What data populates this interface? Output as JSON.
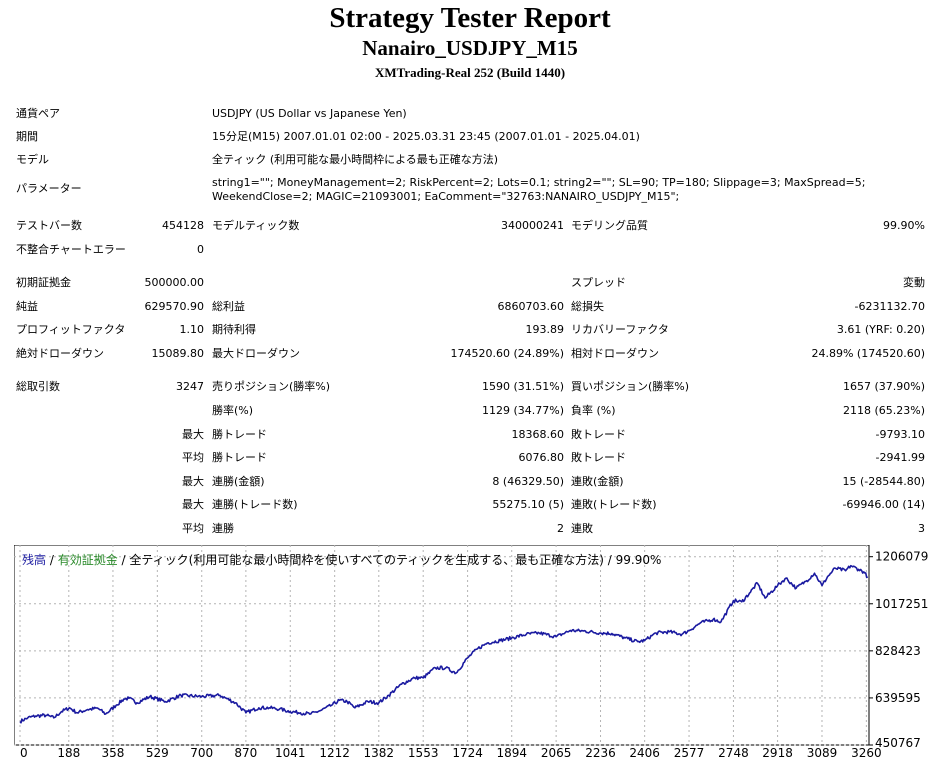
{
  "header": {
    "title": "Strategy Tester Report",
    "subtitle": "Nanairo_USDJPY_M15",
    "server": "XMTrading-Real 252 (Build 1440)"
  },
  "info": {
    "pair_label": "通貨ペア",
    "pair_value": "USDJPY (US Dollar vs Japanese Yen)",
    "period_label": "期間",
    "period_value": "15分足(M15) 2007.01.01 02:00 - 2025.03.31 23:45 (2007.01.01 - 2025.04.01)",
    "model_label": "モデル",
    "model_value": "全ティック (利用可能な最小時間枠による最も正確な方法)",
    "params_label": "パラメーター",
    "params_line1": "string1=\"\"; MoneyManagement=2; RiskPercent=2; Lots=0.1; string2=\"\"; SL=90; TP=180; Slippage=3; MaxSpread=5;",
    "params_line2": "WeekendClose=2; MAGIC=21093001; EaComment=\"32763:NANAIRO_USDJPY_M15\";"
  },
  "stats": {
    "bars_label": "テストバー数",
    "bars_value": "454128",
    "ticks_label": "モデルティック数",
    "ticks_value": "340000241",
    "quality_label": "モデリング品質",
    "quality_value": "99.90%",
    "mismatch_label": "不整合チャートエラー",
    "mismatch_value": "0",
    "deposit_label": "初期証拠金",
    "deposit_value": "500000.00",
    "spread_label": "スプレッド",
    "spread_value": "変動",
    "netprofit_label": "純益",
    "netprofit_value": "629570.90",
    "grossprofit_label": "総利益",
    "grossprofit_value": "6860703.60",
    "grossloss_label": "総損失",
    "grossloss_value": "-6231132.70",
    "pf_label": "プロフィットファクタ",
    "pf_value": "1.10",
    "expected_label": "期待利得",
    "expected_value": "193.89",
    "recovery_label": "リカバリーファクタ",
    "recovery_value": "3.61 (YRF: 0.20)",
    "absdd_label": "絶対ドローダウン",
    "absdd_value": "15089.80",
    "maxdd_label": "最大ドローダウン",
    "maxdd_value": "174520.60 (24.89%)",
    "reldd_label": "相対ドローダウン",
    "reldd_value": "24.89% (174520.60)",
    "trades_label": "総取引数",
    "trades_value": "3247",
    "short_label": "売りポジション(勝率%)",
    "short_value": "1590 (31.51%)",
    "long_label": "買いポジション(勝率%)",
    "long_value": "1657 (37.90%)",
    "winrate_label": "勝率(%)",
    "winrate_value": "1129 (34.77%)",
    "lossrate_label": "負率 (%)",
    "lossrate_value": "2118 (65.23%)",
    "max1": "最大",
    "largest_win_label": "勝トレード",
    "largest_win_value": "18368.60",
    "largest_loss_label": "敗トレード",
    "largest_loss_value": "-9793.10",
    "avg1": "平均",
    "avg_win_label": "勝トレード",
    "avg_win_value": "6076.80",
    "avg_loss_label": "敗トレード",
    "avg_loss_value": "-2941.99",
    "max2": "最大",
    "cons_win_label": "連勝(金額)",
    "cons_win_value": "8 (46329.50)",
    "cons_loss_label": "連敗(金額)",
    "cons_loss_value": "15 (-28544.80)",
    "max3": "最大",
    "cons_profit_label": "連勝(トレード数)",
    "cons_profit_value": "55275.10 (5)",
    "cons_lossamt_label": "連敗(トレード数)",
    "cons_lossamt_value": "-69946.00 (14)",
    "avg2": "平均",
    "avg_cons_win_label": "連勝",
    "avg_cons_win_value": "2",
    "avg_cons_loss_label": "連敗",
    "avg_cons_loss_value": "3"
  },
  "chart_title": {
    "part1": "残高",
    "sep1": " / ",
    "part2": "有効証拠金",
    "part3": " / 全ティック(利用可能な最小時間枠を使いすべてのティックを生成する、最も正確な方法) / 99.90%"
  },
  "colors": {
    "balance": "#1a1aa0",
    "equity": "#2a8a2a",
    "grid": "#b4b4b4"
  },
  "chart_data": {
    "type": "line",
    "title": "",
    "xlabel": "",
    "ylabel": "",
    "xlim": [
      0,
      3247
    ],
    "ylim": [
      450767,
      1253000
    ],
    "x_ticks": [
      0,
      188,
      358,
      529,
      700,
      870,
      1041,
      1212,
      1382,
      1553,
      1724,
      1894,
      2065,
      2236,
      2406,
      2577,
      2748,
      2918,
      3089,
      3260
    ],
    "y_ticks": [
      450767,
      639595,
      828423,
      1017251,
      1206079
    ],
    "grid": true,
    "series": [
      {
        "name": "残高",
        "x": [
          0,
          30,
          60,
          100,
          130,
          160,
          190,
          220,
          260,
          300,
          330,
          370,
          400,
          420,
          450,
          500,
          560,
          620,
          700,
          770,
          830,
          870,
          920,
          960,
          1000,
          1041,
          1080,
          1120,
          1160,
          1200,
          1230,
          1260,
          1290,
          1340,
          1382,
          1420,
          1470,
          1520,
          1553,
          1600,
          1640,
          1680,
          1724,
          1760,
          1800,
          1850,
          1894,
          1950,
          2000,
          2065,
          2120,
          2170,
          2236,
          2280,
          2330,
          2380,
          2406,
          2450,
          2500,
          2550,
          2577,
          2620,
          2670,
          2700,
          2748,
          2780,
          2810,
          2840,
          2870,
          2918,
          2950,
          2990,
          3030,
          3060,
          3089,
          3110,
          3140,
          3180,
          3200,
          3230,
          3250,
          3265
        ],
        "values": [
          545000,
          560000,
          567000,
          570000,
          560000,
          585000,
          600000,
          580000,
          593000,
          598000,
          575000,
          610000,
          635000,
          638000,
          620000,
          645000,
          625000,
          650000,
          645000,
          650000,
          620000,
          580000,
          600000,
          600000,
          595000,
          585000,
          580000,
          575000,
          590000,
          610000,
          630000,
          625000,
          600000,
          625000,
          620000,
          650000,
          695000,
          720000,
          720000,
          760000,
          760000,
          740000,
          800000,
          835000,
          860000,
          870000,
          880000,
          895000,
          900000,
          885000,
          910000,
          908000,
          900000,
          898000,
          880000,
          865000,
          870000,
          900000,
          905000,
          895000,
          910000,
          940000,
          955000,
          945000,
          1030000,
          1025000,
          1060000,
          1100000,
          1040000,
          1090000,
          1120000,
          1080000,
          1110000,
          1140000,
          1090000,
          1125000,
          1160000,
          1150000,
          1170000,
          1155000,
          1145000,
          1125000
        ]
      }
    ]
  }
}
